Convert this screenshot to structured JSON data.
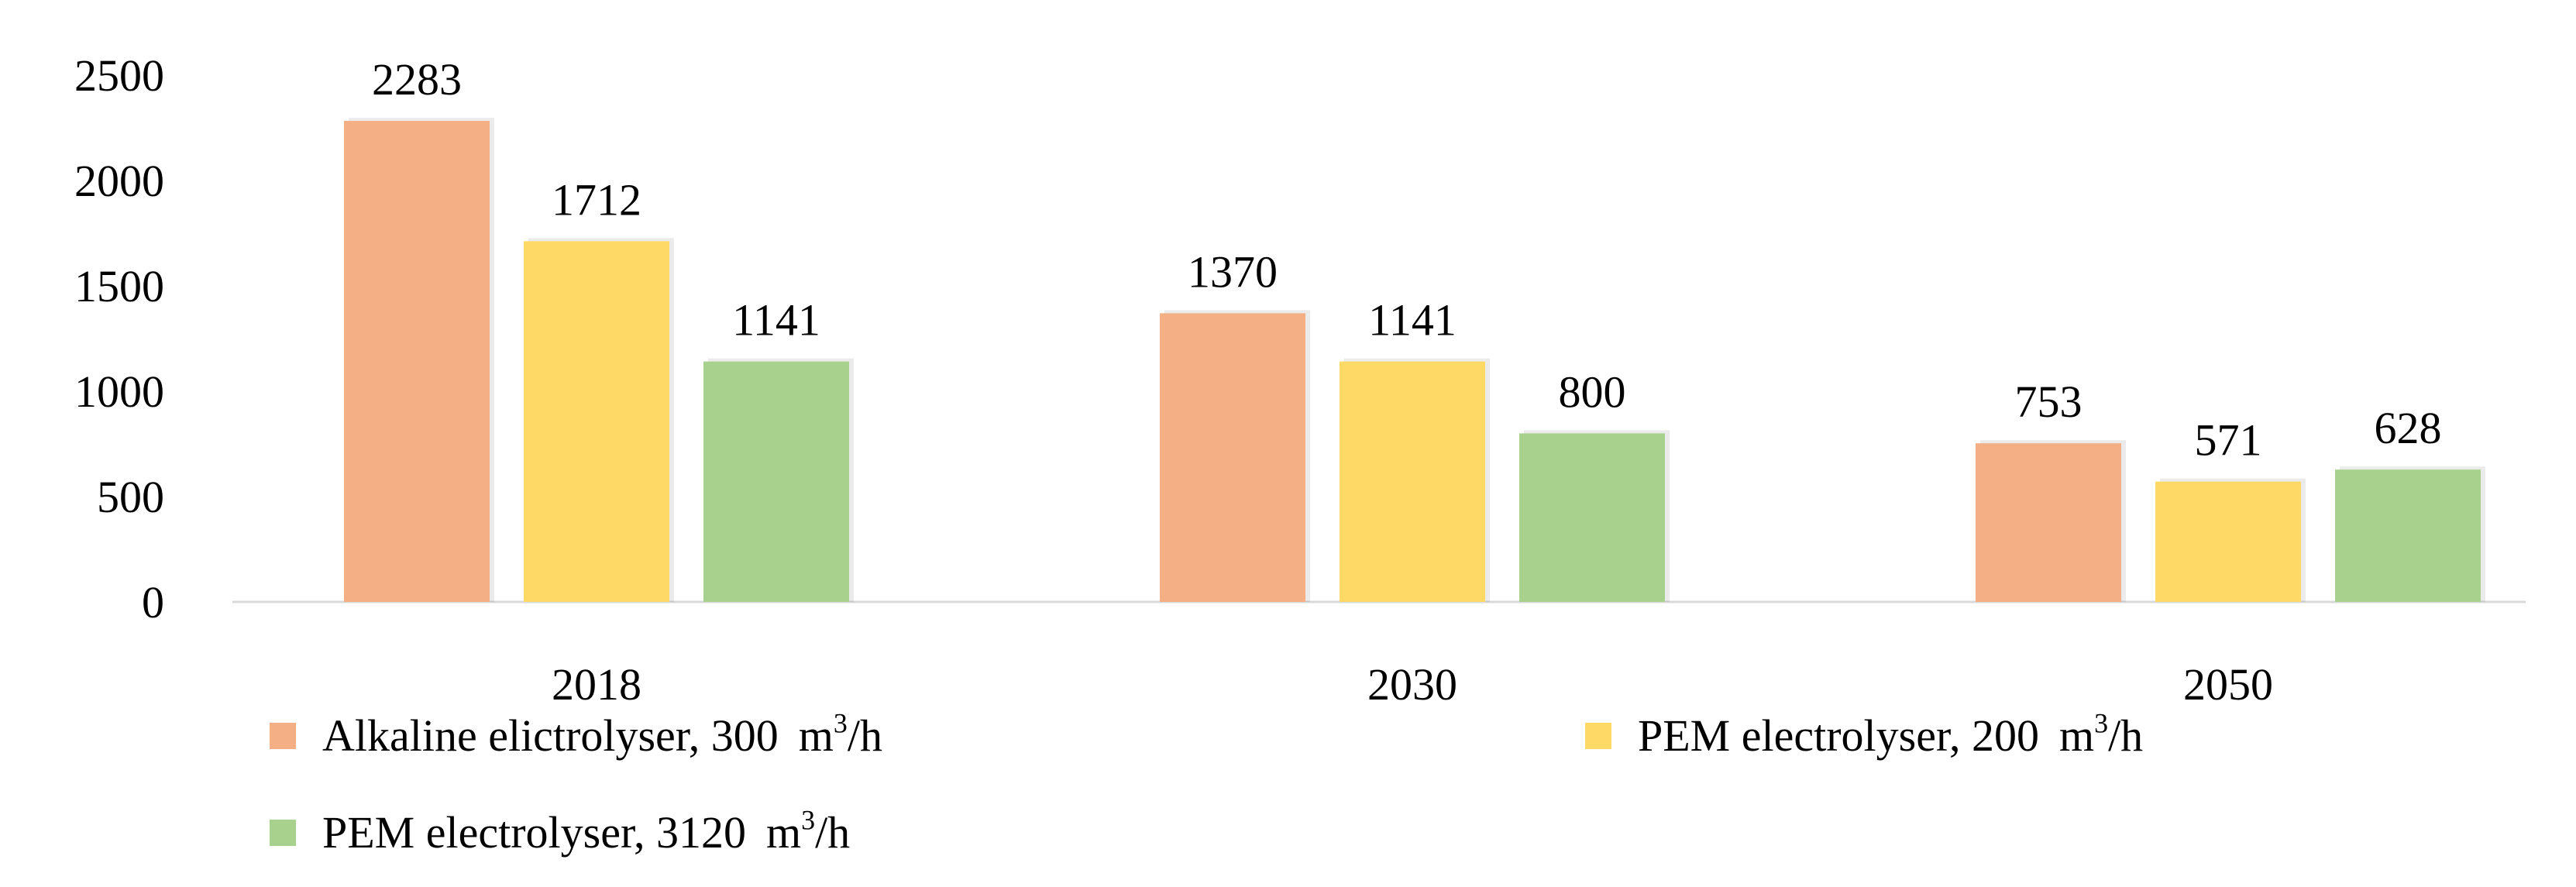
{
  "chart_data": {
    "type": "bar",
    "title": "",
    "xlabel": "",
    "ylabel": "",
    "categories": [
      "2018",
      "2030",
      "2050"
    ],
    "ylim": [
      0,
      2500
    ],
    "yticks": [
      "0",
      "500",
      "1000",
      "1500",
      "2000",
      "2500"
    ],
    "grid": false,
    "legend_position": "bottom",
    "data_labels": true,
    "series": [
      {
        "legend_label": "Alkaline elictrolyser, 300",
        "unit_base": "m",
        "unit_sup": "3",
        "unit_tail": "/h",
        "color": "#F4B084",
        "values": [
          2283,
          1370,
          753
        ]
      },
      {
        "legend_label": "PEM electrolyser, 200",
        "unit_base": "m",
        "unit_sup": "3",
        "unit_tail": "/h",
        "color": "#FFD966",
        "values": [
          1712,
          1141,
          571
        ]
      },
      {
        "legend_label": "PEM electrolyser, 3120",
        "unit_base": "m",
        "unit_sup": "3",
        "unit_tail": "/h",
        "color": "#A9D18E",
        "values": [
          1141,
          800,
          628
        ]
      }
    ]
  }
}
